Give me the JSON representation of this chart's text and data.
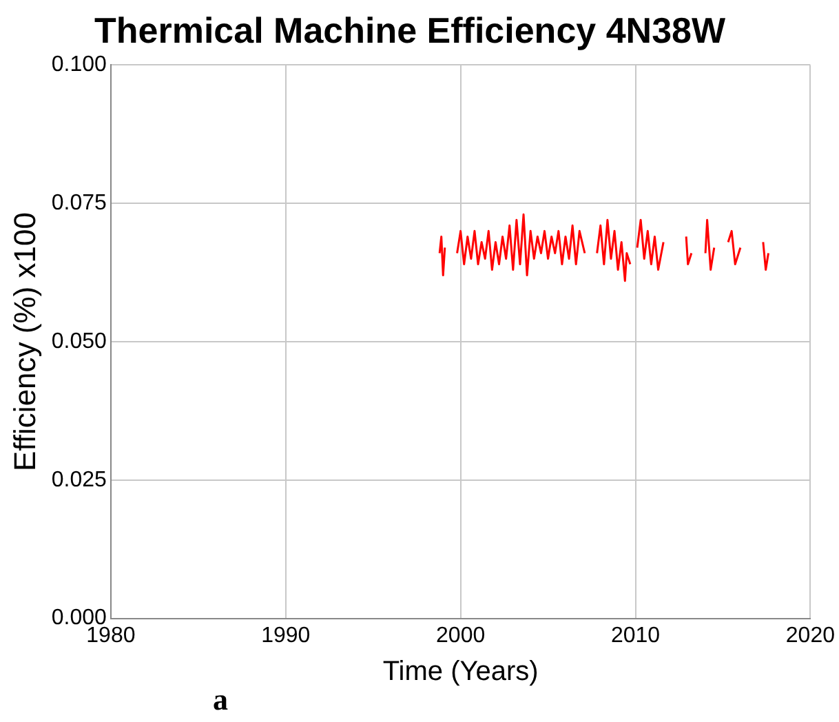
{
  "chart_data": {
    "type": "line",
    "title": "Thermical Machine Efficiency 4N38W",
    "xlabel": "Time (Years)",
    "ylabel": "Efficiency (%) x100",
    "annotations": [
      "a"
    ],
    "x": [
      1998.8,
      1998.9,
      1999.0,
      1999.1,
      1999.4,
      1999.8,
      2000.0,
      2000.2,
      2000.4,
      2000.6,
      2000.8,
      2001.0,
      2001.2,
      2001.4,
      2001.6,
      2001.8,
      2002.0,
      2002.2,
      2002.4,
      2002.6,
      2002.8,
      2003.0,
      2003.2,
      2003.4,
      2003.6,
      2003.8,
      2004.0,
      2004.2,
      2004.4,
      2004.6,
      2004.8,
      2005.0,
      2005.2,
      2005.4,
      2005.6,
      2005.8,
      2006.0,
      2006.2,
      2006.4,
      2006.6,
      2006.8,
      2007.1,
      2007.4,
      2007.8,
      2008.0,
      2008.2,
      2008.4,
      2008.6,
      2008.8,
      2009.0,
      2009.2,
      2009.4,
      2009.5,
      2009.7,
      2009.9,
      2010.1,
      2010.3,
      2010.5,
      2010.7,
      2010.9,
      2011.1,
      2011.3,
      2011.6,
      2012.2,
      2012.9,
      2013.0,
      2013.2,
      2013.6,
      2014.0,
      2014.1,
      2014.3,
      2014.5,
      2014.9,
      2015.3,
      2015.5,
      2015.7,
      2016.0,
      2016.6,
      2017.3,
      2017.45,
      2017.6
    ],
    "series": [
      {
        "color": "#ff0000",
        "values": [
          0.066,
          0.069,
          0.062,
          0.067,
          null,
          0.066,
          0.07,
          0.064,
          0.069,
          0.065,
          0.07,
          0.064,
          0.068,
          0.065,
          0.07,
          0.063,
          0.068,
          0.064,
          0.069,
          0.065,
          0.071,
          0.063,
          0.072,
          0.064,
          0.073,
          0.062,
          0.07,
          0.065,
          0.069,
          0.066,
          0.07,
          0.065,
          0.069,
          0.066,
          0.07,
          0.064,
          0.069,
          0.065,
          0.071,
          0.064,
          0.07,
          0.066,
          null,
          0.066,
          0.071,
          0.064,
          0.072,
          0.065,
          0.07,
          0.063,
          0.068,
          0.061,
          0.066,
          0.064,
          null,
          0.067,
          0.072,
          0.065,
          0.07,
          0.064,
          0.069,
          0.063,
          0.068,
          null,
          0.069,
          0.064,
          0.066,
          null,
          0.066,
          0.072,
          0.063,
          0.067,
          null,
          0.068,
          0.07,
          0.064,
          0.067,
          null,
          0.068,
          0.063,
          0.066
        ]
      }
    ],
    "xlim": [
      1980,
      2020
    ],
    "xticks": [
      1980,
      1990,
      2000,
      2010,
      2020
    ],
    "ylim": [
      0,
      0.1
    ],
    "yticks": [
      {
        "value": 0,
        "label": "0.000"
      },
      0.025,
      {
        "value": 0.05,
        "label": "0.050"
      },
      0.075,
      {
        "value": 0.1,
        "label": "0.100"
      }
    ],
    "grid": true,
    "legend": false,
    "marker": "none",
    "line_style": "solid"
  }
}
